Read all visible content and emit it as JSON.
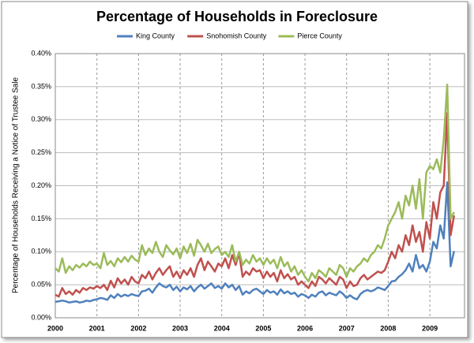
{
  "chart_data": {
    "type": "line",
    "title": "Percentage of Households in Foreclosure",
    "y_label": "Percentage of Households Receiving a Notice of Trustee Sale",
    "categories": [
      "2000",
      null,
      null,
      null,
      null,
      null,
      null,
      null,
      null,
      null,
      null,
      null,
      "2001",
      null,
      null,
      null,
      null,
      null,
      null,
      null,
      null,
      null,
      null,
      null,
      "2002",
      null,
      null,
      null,
      null,
      null,
      null,
      null,
      null,
      null,
      null,
      null,
      "2003",
      null,
      null,
      null,
      null,
      null,
      null,
      null,
      null,
      null,
      null,
      null,
      "2004",
      null,
      null,
      null,
      null,
      null,
      null,
      null,
      null,
      null,
      null,
      null,
      "2005",
      null,
      null,
      null,
      null,
      null,
      null,
      null,
      null,
      null,
      null,
      null,
      "2006",
      null,
      null,
      null,
      null,
      null,
      null,
      null,
      null,
      null,
      null,
      null,
      "2007",
      null,
      null,
      null,
      null,
      null,
      null,
      null,
      null,
      null,
      null,
      null,
      "2008",
      null,
      null,
      null,
      null,
      null,
      null,
      null,
      null,
      null,
      null,
      null,
      "2009",
      null,
      null,
      null,
      null,
      null,
      null,
      null
    ],
    "series": [
      {
        "name": "King County",
        "color": "#4f81bd",
        "values": [
          0.024,
          0.025,
          0.026,
          0.025,
          0.023,
          0.024,
          0.025,
          0.023,
          0.024,
          0.026,
          0.025,
          0.027,
          0.028,
          0.03,
          0.029,
          0.027,
          0.034,
          0.03,
          0.036,
          0.032,
          0.035,
          0.033,
          0.036,
          0.034,
          0.033,
          0.04,
          0.041,
          0.044,
          0.038,
          0.046,
          0.052,
          0.048,
          0.046,
          0.05,
          0.042,
          0.047,
          0.04,
          0.046,
          0.043,
          0.048,
          0.04,
          0.046,
          0.05,
          0.044,
          0.048,
          0.052,
          0.045,
          0.048,
          0.044,
          0.052,
          0.046,
          0.05,
          0.042,
          0.048,
          0.035,
          0.04,
          0.037,
          0.042,
          0.044,
          0.04,
          0.036,
          0.042,
          0.038,
          0.04,
          0.035,
          0.043,
          0.037,
          0.04,
          0.036,
          0.038,
          0.032,
          0.036,
          0.034,
          0.03,
          0.035,
          0.032,
          0.038,
          0.04,
          0.034,
          0.038,
          0.036,
          0.034,
          0.04,
          0.036,
          0.03,
          0.034,
          0.03,
          0.028,
          0.036,
          0.04,
          0.042,
          0.04,
          0.042,
          0.046,
          0.044,
          0.042,
          0.048,
          0.055,
          0.056,
          0.062,
          0.066,
          0.072,
          0.082,
          0.07,
          0.095,
          0.075,
          0.08,
          0.07,
          0.085,
          0.115,
          0.105,
          0.14,
          0.12,
          0.205,
          0.078,
          0.101
        ]
      },
      {
        "name": "Snohomish County",
        "color": "#c0504d",
        "values": [
          0.035,
          0.032,
          0.045,
          0.036,
          0.04,
          0.035,
          0.042,
          0.038,
          0.045,
          0.042,
          0.046,
          0.044,
          0.048,
          0.045,
          0.05,
          0.042,
          0.056,
          0.046,
          0.06,
          0.052,
          0.058,
          0.05,
          0.062,
          0.055,
          0.052,
          0.065,
          0.06,
          0.07,
          0.058,
          0.068,
          0.075,
          0.065,
          0.072,
          0.078,
          0.062,
          0.07,
          0.06,
          0.072,
          0.065,
          0.075,
          0.062,
          0.08,
          0.09,
          0.072,
          0.085,
          0.078,
          0.07,
          0.082,
          0.078,
          0.09,
          0.075,
          0.095,
          0.08,
          0.098,
          0.062,
          0.07,
          0.065,
          0.075,
          0.07,
          0.072,
          0.06,
          0.07,
          0.062,
          0.068,
          0.055,
          0.072,
          0.06,
          0.066,
          0.058,
          0.062,
          0.05,
          0.055,
          0.05,
          0.045,
          0.055,
          0.048,
          0.062,
          0.058,
          0.052,
          0.06,
          0.055,
          0.05,
          0.062,
          0.058,
          0.045,
          0.055,
          0.048,
          0.05,
          0.06,
          0.065,
          0.058,
          0.062,
          0.066,
          0.07,
          0.068,
          0.072,
          0.085,
          0.1,
          0.09,
          0.11,
          0.1,
          0.125,
          0.11,
          0.14,
          0.115,
          0.13,
          0.1,
          0.145,
          0.12,
          0.175,
          0.15,
          0.19,
          0.2,
          0.31,
          0.125,
          0.155
        ]
      },
      {
        "name": "Pierce County",
        "color": "#9bbb59",
        "values": [
          0.075,
          0.07,
          0.09,
          0.068,
          0.078,
          0.072,
          0.08,
          0.076,
          0.082,
          0.078,
          0.085,
          0.08,
          0.082,
          0.075,
          0.098,
          0.08,
          0.086,
          0.078,
          0.09,
          0.084,
          0.092,
          0.085,
          0.094,
          0.088,
          0.085,
          0.11,
          0.095,
          0.105,
          0.098,
          0.115,
          0.1,
          0.092,
          0.11,
          0.102,
          0.096,
          0.105,
          0.09,
          0.108,
          0.098,
          0.112,
          0.094,
          0.118,
          0.11,
          0.1,
          0.112,
          0.098,
          0.104,
          0.108,
          0.095,
          0.1,
          0.092,
          0.11,
          0.085,
          0.1,
          0.08,
          0.088,
          0.082,
          0.095,
          0.085,
          0.09,
          0.08,
          0.09,
          0.082,
          0.088,
          0.075,
          0.092,
          0.078,
          0.084,
          0.07,
          0.078,
          0.065,
          0.072,
          0.062,
          0.055,
          0.068,
          0.06,
          0.072,
          0.068,
          0.062,
          0.075,
          0.07,
          0.065,
          0.08,
          0.075,
          0.062,
          0.075,
          0.07,
          0.078,
          0.082,
          0.09,
          0.085,
          0.095,
          0.1,
          0.11,
          0.105,
          0.12,
          0.14,
          0.15,
          0.16,
          0.175,
          0.15,
          0.185,
          0.17,
          0.2,
          0.165,
          0.21,
          0.15,
          0.22,
          0.23,
          0.225,
          0.24,
          0.22,
          0.27,
          0.353,
          0.15,
          0.16
        ]
      }
    ],
    "ylim": [
      0,
      0.4
    ],
    "yticks": [
      {
        "value": 0,
        "label": "0.00%"
      },
      {
        "value": 0.05,
        "label": "0.05%"
      },
      {
        "value": 0.1,
        "label": "0.10%"
      },
      {
        "value": 0.15,
        "label": "0.15%"
      },
      {
        "value": 0.2,
        "label": "0.20%"
      },
      {
        "value": 0.25,
        "label": "0.25%"
      },
      {
        "value": 0.3,
        "label": "0.30%"
      },
      {
        "value": 0.35,
        "label": "0.35%"
      },
      {
        "value": 0.4,
        "label": "0.40%"
      }
    ],
    "grid": true,
    "legend": "top"
  }
}
